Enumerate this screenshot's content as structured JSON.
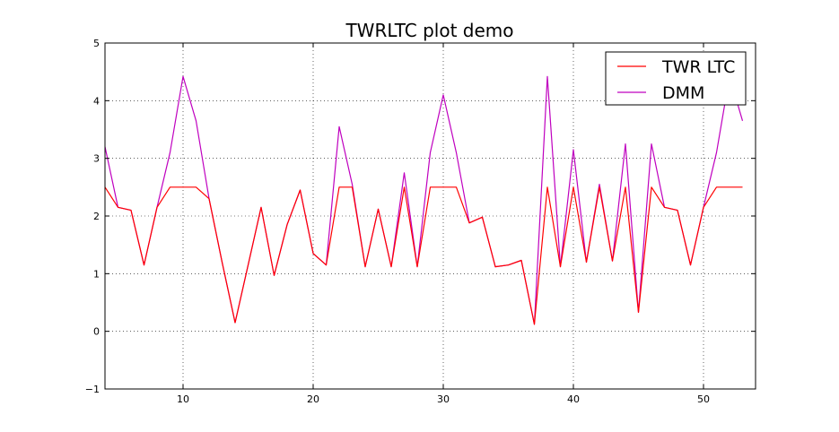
{
  "chart_data": {
    "type": "line",
    "title": "TWRLTC plot demo",
    "xlabel": "",
    "ylabel": "",
    "xlim": [
      4,
      54
    ],
    "ylim": [
      -1,
      5
    ],
    "xticks": [
      10,
      20,
      30,
      40,
      50
    ],
    "xtick_labels": [
      "10",
      "20",
      "30",
      "40",
      "50"
    ],
    "yticks": [
      -1,
      0,
      1,
      2,
      3,
      4,
      5
    ],
    "ytick_labels": [
      "−1",
      "0",
      "1",
      "2",
      "3",
      "4",
      "5"
    ],
    "grid": true,
    "legend_position": "top-right",
    "x": [
      4,
      5,
      6,
      7,
      8,
      9,
      10,
      11,
      12,
      13,
      14,
      15,
      16,
      17,
      18,
      19,
      20,
      21,
      22,
      23,
      24,
      25,
      26,
      27,
      28,
      29,
      30,
      31,
      32,
      33,
      34,
      35,
      36,
      37,
      38,
      39,
      40,
      41,
      42,
      43,
      44,
      45,
      46,
      47,
      48,
      49,
      50,
      51,
      52,
      53
    ],
    "series": [
      {
        "name": "DMM",
        "color": "#bf00bf",
        "values": [
          3.2,
          2.15,
          2.1,
          1.15,
          2.15,
          3.1,
          4.42,
          3.65,
          2.3,
          1.2,
          0.15,
          1.15,
          2.15,
          0.97,
          1.85,
          2.45,
          1.35,
          1.15,
          3.55,
          2.55,
          1.12,
          2.12,
          1.12,
          2.75,
          1.12,
          3.1,
          4.1,
          3.1,
          1.88,
          1.98,
          1.12,
          1.15,
          1.23,
          0.12,
          4.42,
          1.12,
          3.15,
          1.2,
          2.55,
          1.22,
          3.25,
          0.33,
          3.25,
          2.15,
          2.1,
          1.15,
          2.15,
          3.1,
          4.42,
          3.65
        ]
      },
      {
        "name": "TWR LTC",
        "color": "#ff0000",
        "values": [
          2.5,
          2.15,
          2.1,
          1.15,
          2.15,
          2.5,
          2.5,
          2.5,
          2.3,
          1.2,
          0.15,
          1.15,
          2.15,
          0.97,
          1.85,
          2.45,
          1.35,
          1.15,
          2.5,
          2.5,
          1.12,
          2.12,
          1.12,
          2.5,
          1.12,
          2.5,
          2.5,
          2.5,
          1.88,
          1.98,
          1.12,
          1.15,
          1.23,
          0.12,
          2.5,
          1.12,
          2.5,
          1.2,
          2.5,
          1.22,
          2.5,
          0.33,
          2.5,
          2.15,
          2.1,
          1.15,
          2.15,
          2.5,
          2.5,
          2.5
        ]
      }
    ],
    "legend": [
      "TWR LTC",
      "DMM"
    ]
  }
}
